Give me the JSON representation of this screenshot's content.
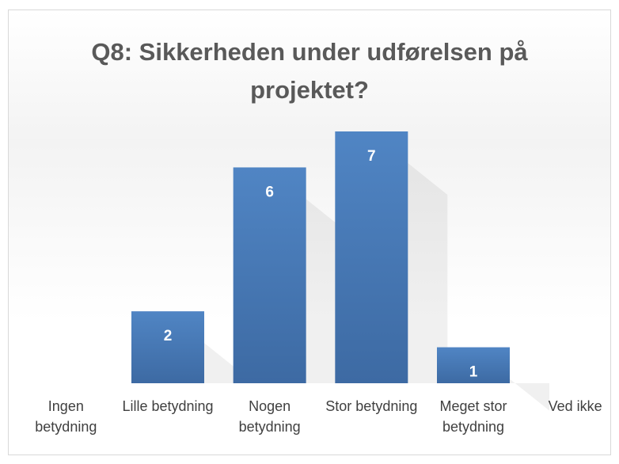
{
  "chart_data": {
    "type": "bar",
    "title": "Q8: Sikkerheden under udførelsen på projektet?",
    "categories": [
      "Ingen betydning",
      "Lille betydning",
      "Nogen betydning",
      "Stor betydning",
      "Meget stor betydning",
      "Ved ikke"
    ],
    "values": [
      0,
      2,
      6,
      7,
      1,
      0
    ],
    "color": "#4a7ebb"
  }
}
